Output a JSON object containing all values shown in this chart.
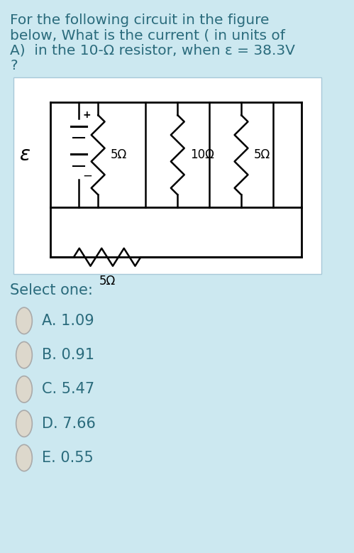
{
  "bg_color": "#cce8f0",
  "circuit_bg": "#ffffff",
  "text_color": "#2a6b7c",
  "title_lines": [
    "For the following circuit in the figure",
    "below, What is the current ( in units of",
    "A)  in the 10-Ω resistor, when ε = 38.3V",
    "?"
  ],
  "select_label": "Select one:",
  "options": [
    "A. 1.09",
    "B. 0.91",
    "C. 5.47",
    "D. 7.66",
    "E. 0.55"
  ],
  "resistor_labels": [
    "5Ω",
    "10Ω",
    "5Ω",
    "5Ω"
  ],
  "epsilon_label": "ε",
  "title_fontsize": 14.5,
  "option_fontsize": 15,
  "select_fontsize": 15
}
